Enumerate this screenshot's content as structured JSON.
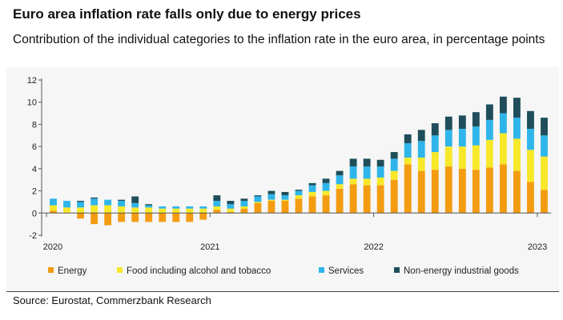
{
  "title": "Euro area inflation rate falls only due to energy prices",
  "subtitle": "Contribution of the individual categories to the inflation rate in the euro area, in percentage points",
  "source": "Source: Eurostat, Commerzbank Research",
  "chart_data": {
    "type": "bar",
    "stacked": true,
    "ylim": [
      -2,
      12
    ],
    "yticks": [
      -2,
      0,
      2,
      4,
      6,
      8,
      10,
      12
    ],
    "xlabels": [
      {
        "label": "2020",
        "index": 0
      },
      {
        "label": "2021",
        "index": 12
      },
      {
        "label": "2022",
        "index": 24
      },
      {
        "label": "2023",
        "index": 36
      }
    ],
    "categories": [
      "Jan 2020",
      "Feb 2020",
      "Mar 2020",
      "Apr 2020",
      "May 2020",
      "Jun 2020",
      "Jul 2020",
      "Aug 2020",
      "Sep 2020",
      "Oct 2020",
      "Nov 2020",
      "Dec 2020",
      "Jan 2021",
      "Feb 2021",
      "Mar 2021",
      "Apr 2021",
      "May 2021",
      "Jun 2021",
      "Jul 2021",
      "Aug 2021",
      "Sep 2021",
      "Oct 2021",
      "Nov 2021",
      "Dec 2021",
      "Jan 2022",
      "Feb 2022",
      "Mar 2022",
      "Apr 2022",
      "May 2022",
      "Jun 2022",
      "Jul 2022",
      "Aug 2022",
      "Sep 2022",
      "Oct 2022",
      "Nov 2022",
      "Dec 2022",
      "Jan 2023"
    ],
    "series": [
      {
        "name": "Energy",
        "color": "#f39c12",
        "values": [
          0.2,
          0.0,
          -0.5,
          -1.0,
          -1.1,
          -0.8,
          -0.8,
          -0.8,
          -0.8,
          -0.8,
          -0.8,
          -0.6,
          0.3,
          0.1,
          0.4,
          0.9,
          1.1,
          1.1,
          1.3,
          1.5,
          1.6,
          2.2,
          2.6,
          2.5,
          2.5,
          3.0,
          4.4,
          3.8,
          3.9,
          4.2,
          4.0,
          3.9,
          4.1,
          4.4,
          3.8,
          2.8,
          2.1
        ]
      },
      {
        "name": "Food including alcohol and tobacco",
        "color": "#f7e82a",
        "values": [
          0.5,
          0.5,
          0.5,
          0.7,
          0.7,
          0.6,
          0.5,
          0.5,
          0.4,
          0.4,
          0.4,
          0.4,
          0.3,
          0.3,
          0.2,
          0.1,
          0.1,
          0.1,
          0.3,
          0.4,
          0.4,
          0.4,
          0.5,
          0.6,
          0.7,
          0.8,
          0.6,
          1.2,
          1.6,
          1.8,
          2.0,
          2.2,
          2.5,
          2.8,
          2.9,
          2.9,
          3.0
        ]
      },
      {
        "name": "Services",
        "color": "#2fb5ea",
        "values": [
          0.6,
          0.6,
          0.5,
          0.6,
          0.5,
          0.5,
          0.4,
          0.2,
          0.2,
          0.2,
          0.2,
          0.2,
          0.5,
          0.4,
          0.5,
          0.5,
          0.5,
          0.4,
          0.4,
          0.6,
          0.7,
          0.8,
          1.1,
          1.1,
          1.0,
          1.1,
          1.3,
          1.5,
          1.5,
          1.5,
          1.6,
          1.7,
          1.8,
          1.8,
          1.9,
          1.9,
          1.9
        ]
      },
      {
        "name": "Non-energy industrial goods",
        "color": "#1f4e5a",
        "values": [
          0.0,
          0.0,
          0.1,
          0.1,
          0.0,
          0.1,
          0.6,
          0.1,
          0.0,
          0.0,
          0.0,
          0.0,
          0.5,
          0.3,
          0.2,
          0.1,
          0.3,
          0.3,
          0.1,
          0.2,
          0.4,
          0.4,
          0.7,
          0.7,
          0.6,
          0.6,
          0.8,
          1.0,
          1.1,
          1.2,
          1.2,
          1.3,
          1.4,
          1.5,
          1.8,
          1.6,
          1.6
        ]
      }
    ],
    "grid": false,
    "legend_position": "bottom"
  }
}
